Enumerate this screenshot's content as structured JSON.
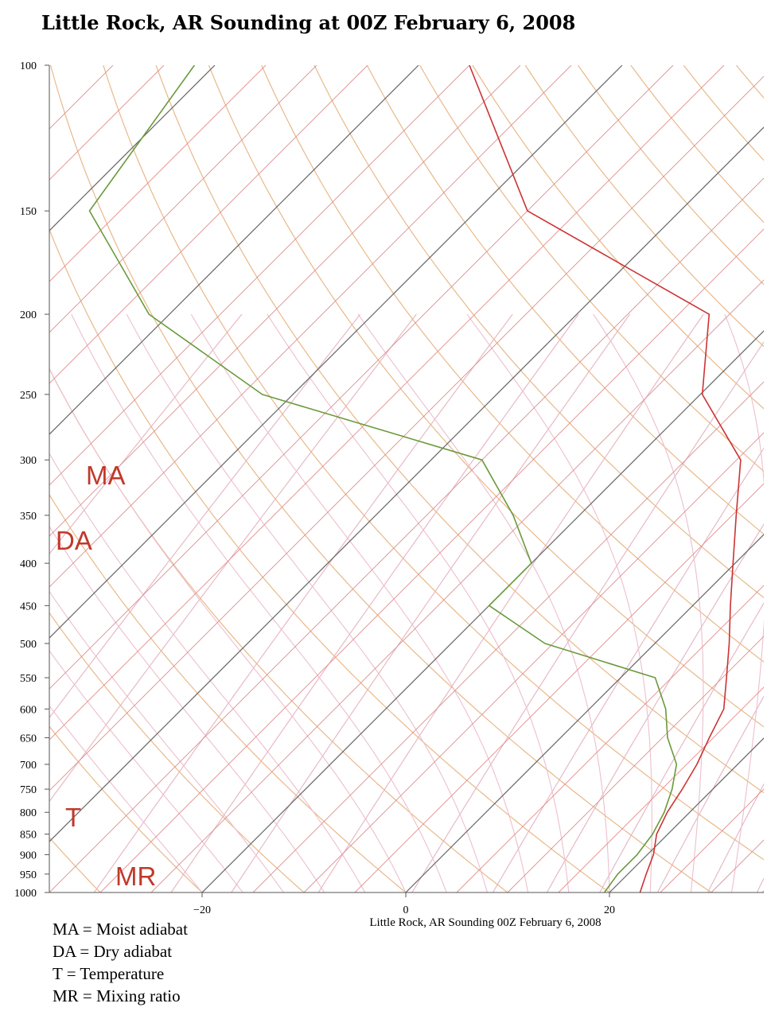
{
  "title": "Little Rock, AR Sounding at 00Z February 6, 2008",
  "chart_data": {
    "type": "line",
    "title": "Little Rock, AR Sounding at 00Z February 6, 2008",
    "xlabel": "Little Rock, AR Sounding 00Z February 6, 2008",
    "ylabel": "",
    "x_ticks": [
      -20,
      0,
      20
    ],
    "x_tick_labels": [
      "−20",
      "0",
      "20"
    ],
    "y_ticks": [
      100,
      150,
      200,
      250,
      300,
      350,
      400,
      450,
      500,
      550,
      600,
      650,
      700,
      750,
      800,
      850,
      900,
      950,
      1000
    ],
    "xlim": [
      -35,
      35
    ],
    "ylim": [
      1000,
      100
    ],
    "y_scale": "log",
    "grid": true,
    "overlay_labels": [
      {
        "text": "MA",
        "color": "#c0392b"
      },
      {
        "text": "DA",
        "color": "#c0392b"
      },
      {
        "text": "T",
        "color": "#c0392b"
      },
      {
        "text": "MR",
        "color": "#c0392b"
      }
    ],
    "series": [
      {
        "key": "temperature",
        "color": "#cc3333",
        "points": [
          [
            1000,
            23.0
          ],
          [
            950,
            21.8
          ],
          [
            900,
            20.6
          ],
          [
            850,
            18.9
          ],
          [
            800,
            17.8
          ],
          [
            750,
            17.0
          ],
          [
            700,
            16.0
          ],
          [
            650,
            14.6
          ],
          [
            600,
            13.2
          ],
          [
            550,
            10.4
          ],
          [
            500,
            7.3
          ],
          [
            450,
            3.7
          ],
          [
            400,
            -0.2
          ],
          [
            350,
            -4.6
          ],
          [
            300,
            -9.6
          ],
          [
            250,
            -19.8
          ],
          [
            200,
            -27.0
          ],
          [
            150,
            -55.0
          ],
          [
            100,
            -75.0
          ]
        ]
      },
      {
        "key": "dewpoint",
        "color": "#6a9a3a",
        "points": [
          [
            1000,
            19.5
          ],
          [
            950,
            19.0
          ],
          [
            900,
            19.0
          ],
          [
            850,
            18.5
          ],
          [
            800,
            17.5
          ],
          [
            750,
            16.0
          ],
          [
            700,
            14.0
          ],
          [
            650,
            10.5
          ],
          [
            600,
            7.5
          ],
          [
            550,
            3.4
          ],
          [
            500,
            -10.8
          ],
          [
            450,
            -20.0
          ],
          [
            400,
            -20.0
          ],
          [
            350,
            -26.5
          ],
          [
            300,
            -35.0
          ],
          [
            250,
            -63.0
          ],
          [
            200,
            -82.0
          ],
          [
            150,
            -98.0
          ],
          [
            100,
            -102.0
          ]
        ]
      }
    ]
  },
  "legend": {
    "lines": [
      "MA = Moist adiabat",
      "DA = Dry adiabat",
      "T = Temperature",
      "MR = Mixing ratio"
    ]
  }
}
